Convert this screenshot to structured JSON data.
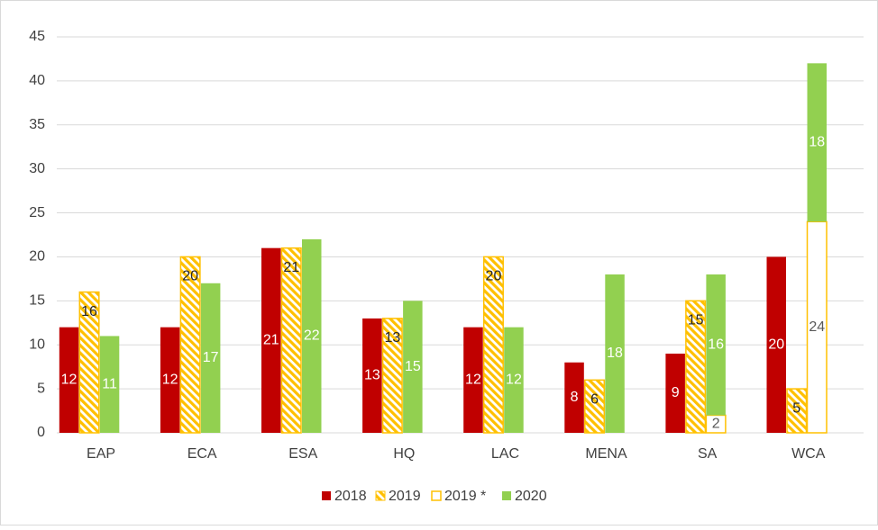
{
  "chart_data": {
    "type": "bar",
    "categories": [
      "EAP",
      "ECA",
      "ESA",
      "HQ",
      "LAC",
      "MENA",
      "SA",
      "WCA"
    ],
    "series": [
      {
        "name": "2018",
        "color": "#c00000",
        "values": [
          12,
          12,
          21,
          13,
          12,
          8,
          9,
          20
        ]
      },
      {
        "name": "2019",
        "color": "#ffc000",
        "values": [
          16,
          20,
          21,
          13,
          20,
          6,
          15,
          5
        ]
      },
      {
        "name": "2019 *",
        "color": "#ffc000",
        "values": [
          null,
          null,
          null,
          null,
          null,
          null,
          2,
          24
        ]
      },
      {
        "name": "2020",
        "color": "#92d050",
        "values": [
          11,
          17,
          22,
          15,
          12,
          18,
          16,
          18
        ]
      }
    ],
    "ylim": [
      0,
      45
    ],
    "yticks": [
      0,
      5,
      10,
      15,
      20,
      25,
      30,
      35,
      40,
      45
    ],
    "grid": true,
    "legend": "bottom"
  }
}
